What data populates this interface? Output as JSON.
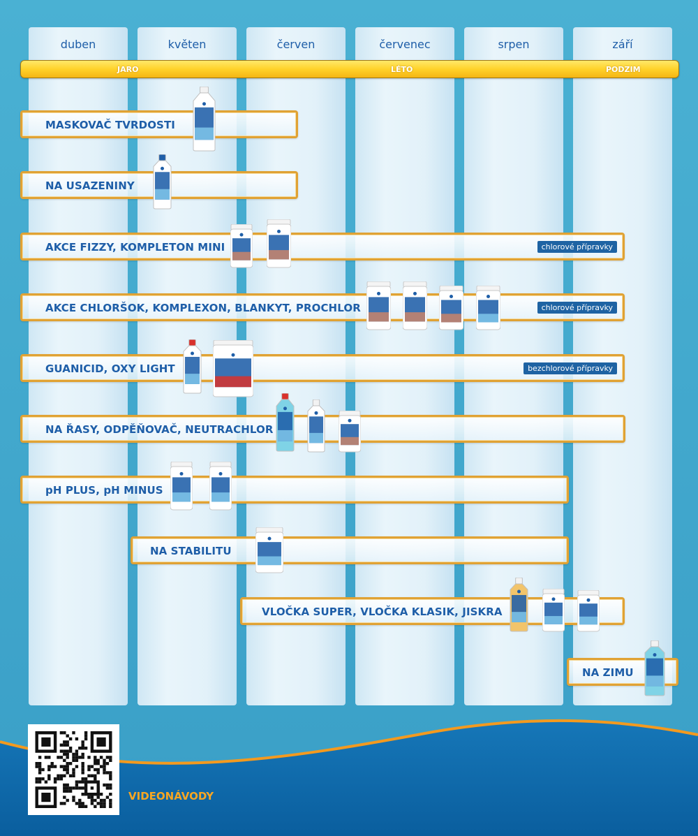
{
  "months": [
    "duben",
    "květen",
    "červen",
    "červenec",
    "srpen",
    "září"
  ],
  "seasons": {
    "jaro": "JARO",
    "leto": "LÉTO",
    "podzim": "PODZIM"
  },
  "rows": [
    {
      "label": "MASKOVAČ TVRDOSTI",
      "badge": ""
    },
    {
      "label": "NA USAZENINY",
      "badge": ""
    },
    {
      "label": "AKCE FIZZY, KOMPLETON MINI",
      "badge": "chlorové přípravky"
    },
    {
      "label": "AKCE CHLORŠOK, KOMPLEXON, BLANKYT, PROCHLOR",
      "badge": "chlorové přípravky"
    },
    {
      "label": "GUANICID, OXY LIGHT",
      "badge": "bezchlorové přípravky"
    },
    {
      "label": "NA ŘASY, ODPĚŇOVAČ, NEUTRACHLOR",
      "badge": ""
    },
    {
      "label": "pH PLUS, pH MINUS",
      "badge": ""
    },
    {
      "label": "NA STABILITU",
      "badge": ""
    },
    {
      "label": "VLOČKA SUPER, VLOČKA KLASIK, JISKRA",
      "badge": ""
    },
    {
      "label": "NA ZIMU",
      "badge": ""
    }
  ],
  "qr_caption": "VIDEONÁVODY",
  "colors": {
    "accent_blue": "#1e5ea8",
    "border_orange": "#e0a234",
    "season_yellow": "#ffd22a",
    "footer_blue": "#0d66a9",
    "wave_orange": "#f39a1f"
  }
}
